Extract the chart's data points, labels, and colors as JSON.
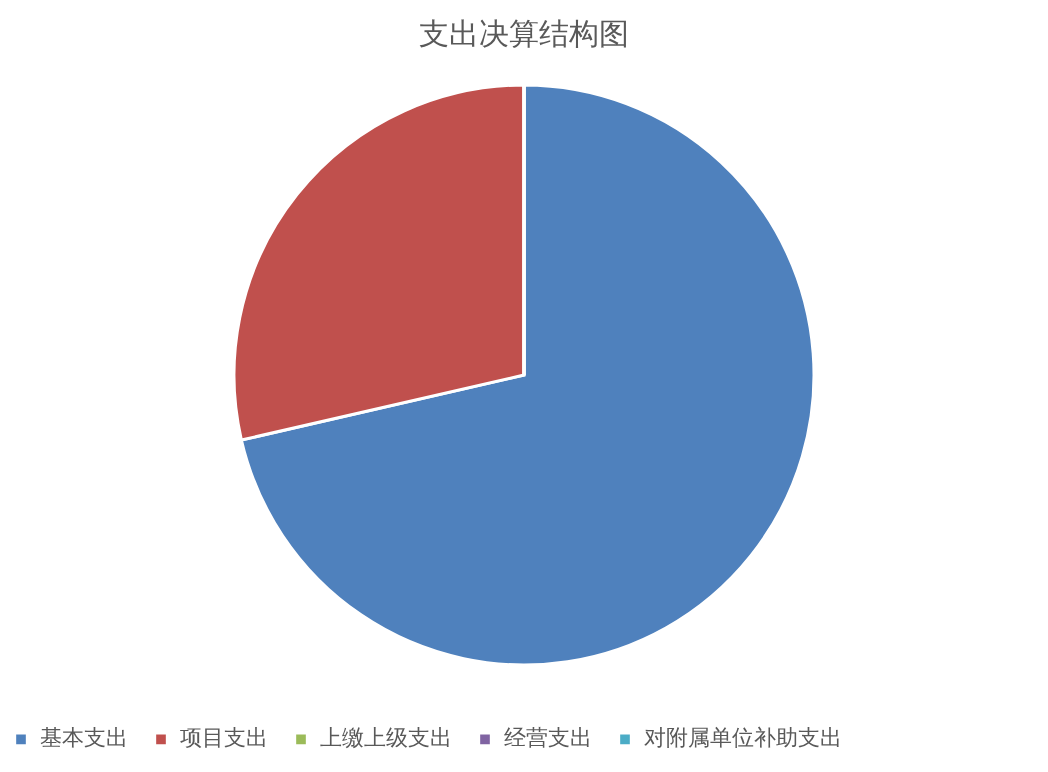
{
  "chart_data": {
    "type": "pie",
    "title": "支出决算结构图",
    "categories": [
      "基本支出",
      "项目支出",
      "上缴上级支出",
      "经营支出",
      "对附属单位补助支出"
    ],
    "values": [
      71.4,
      28.6,
      0,
      0,
      0
    ],
    "colors": [
      "#4f81bd",
      "#c0504d",
      "#9bbb59",
      "#8064a2",
      "#4bacc6"
    ],
    "legend": "bottom"
  }
}
